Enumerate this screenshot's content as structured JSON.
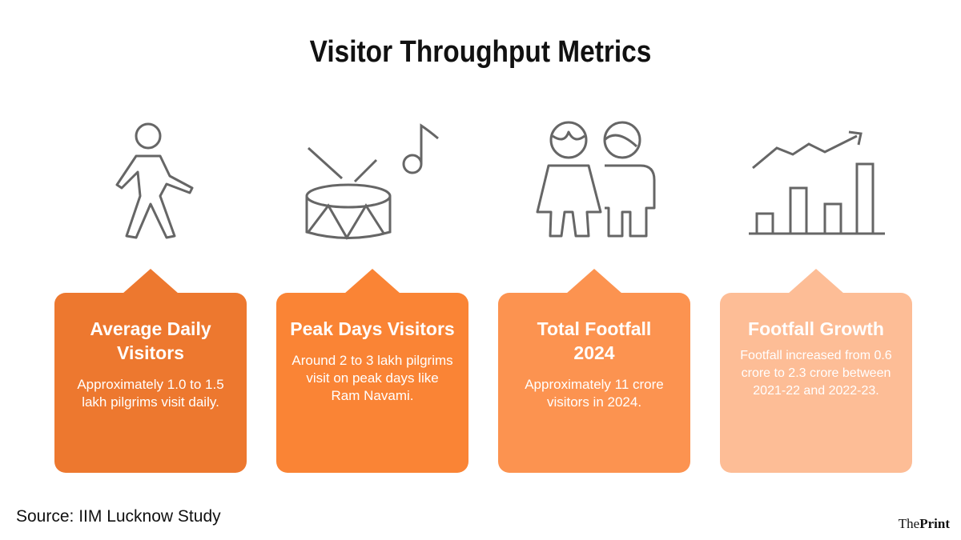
{
  "title": "Visitor Throughput Metrics",
  "cards": [
    {
      "heading": "Average Daily Visitors",
      "body": "Approximately 1.0 to 1.5 lakh pilgrims visit daily.",
      "color": "#ED782F",
      "icon": "walking-person-icon"
    },
    {
      "heading": "Peak Days Visitors",
      "body": "Around 2 to 3 lakh pilgrims visit on peak days like Ram Navami.",
      "color": "#FA8435",
      "icon": "drum-music-note-icon"
    },
    {
      "heading": "Total Footfall 2024",
      "body": "Approximately 11 crore visitors in 2024.",
      "color": "#FC9350",
      "icon": "two-people-icon"
    },
    {
      "heading": "Footfall Growth",
      "body": "Footfall increased from 0.6 crore to 2.3 crore between 2021-22 and 2022-23.",
      "color": "#FDBD96",
      "icon": "growth-chart-icon"
    }
  ],
  "source": "Source: IIM Lucknow Study",
  "logo": {
    "the": "The",
    "print": "Print"
  }
}
